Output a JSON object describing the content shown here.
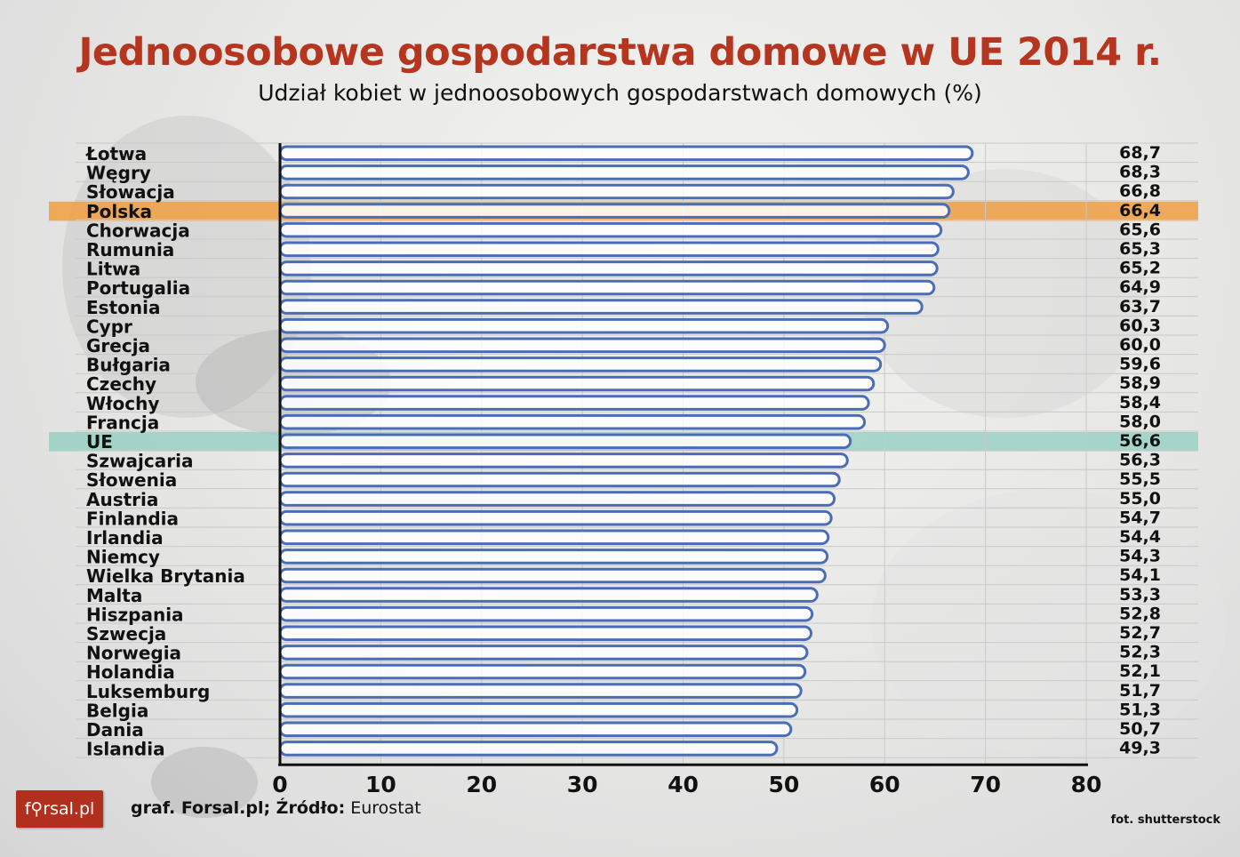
{
  "title": "Jednoosobowe gospodarstwa domowe w UE  2014 r.",
  "subtitle": "Udział kobiet w jednoosobowych gospodarstwach domowych (%)",
  "logo_text": "f⚲rsal.pl",
  "source": {
    "prefix": "graf. Forsal.pl; Źródło:",
    "name": "Eurostat"
  },
  "photo_credit": "fot. shutterstock",
  "colors": {
    "title": "#b5351f",
    "bar_outline": "#4a6db5",
    "highlight_polska": "#f0a24a",
    "highlight_ue": "#8fcfbf",
    "logo_bg": "#b0301d"
  },
  "chart_data": {
    "type": "bar",
    "orientation": "horizontal",
    "categories": [
      "Łotwa",
      "Węgry",
      "Słowacja",
      "Polska",
      "Chorwacja",
      "Rumunia",
      "Litwa",
      "Portugalia",
      "Estonia",
      "Cypr",
      "Grecja",
      "Bułgaria",
      "Czechy",
      "Włochy",
      "Francja",
      "UE",
      "Szwajcaria",
      "Słowenia",
      "Austria",
      "Finlandia",
      "Irlandia",
      "Niemcy",
      "Wielka Brytania",
      "Malta",
      "Hiszpania",
      "Szwecja",
      "Norwegia",
      "Holandia",
      "Luksemburg",
      "Belgia",
      "Dania",
      "Islandia"
    ],
    "values": [
      68.7,
      68.3,
      66.8,
      66.4,
      65.6,
      65.3,
      65.2,
      64.9,
      63.7,
      60.3,
      60.0,
      59.6,
      58.9,
      58.4,
      58.0,
      56.6,
      56.3,
      55.5,
      55.0,
      54.7,
      54.4,
      54.3,
      54.1,
      53.3,
      52.8,
      52.7,
      52.3,
      52.1,
      51.7,
      51.3,
      50.7,
      49.3
    ],
    "value_labels": [
      "68,7",
      "68,3",
      "66,8",
      "66,4",
      "65,6",
      "65,3",
      "65,2",
      "64,9",
      "63,7",
      "60,3",
      "60,0",
      "59,6",
      "58,9",
      "58,4",
      "58,0",
      "56,6",
      "56,3",
      "55,5",
      "55,0",
      "54,7",
      "54,4",
      "54,3",
      "54,1",
      "53,3",
      "52,8",
      "52,7",
      "52,3",
      "52,1",
      "51,7",
      "51,3",
      "50,7",
      "49,3"
    ],
    "highlighted": {
      "Polska": "highlight_polska",
      "UE": "highlight_ue"
    },
    "xlim": [
      0,
      80
    ],
    "xticks": [
      "0",
      "10",
      "20",
      "30",
      "40",
      "50",
      "60",
      "70",
      "80"
    ],
    "grid": true
  }
}
